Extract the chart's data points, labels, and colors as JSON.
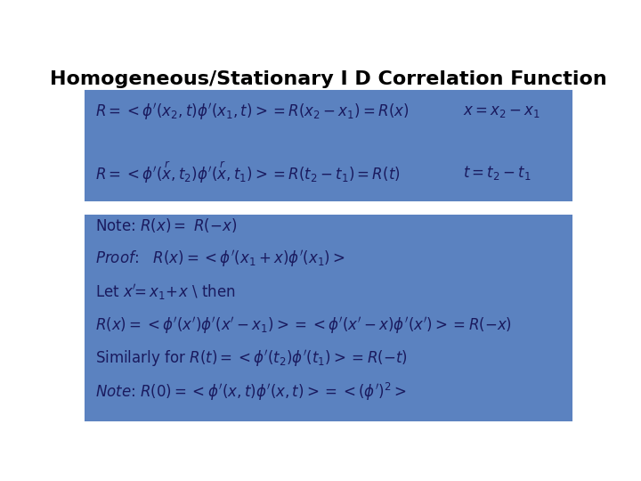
{
  "title": "Homogeneous/Stationary I D Correlation Function",
  "title_fontsize": 16,
  "title_fontweight": "bold",
  "bg_color": "#ffffff",
  "box1_color": "#5b82c0",
  "box2_color": "#5b82c0",
  "text_color": "#1a1a5e"
}
